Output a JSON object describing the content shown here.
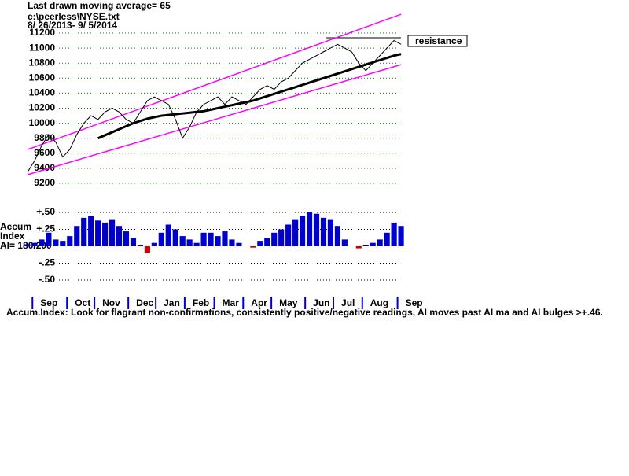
{
  "chart_data": [
    {
      "type": "line",
      "title": "Last drawn moving average= 65",
      "subtitle": "c:\\peerless\\NYSE.txt",
      "date_range": "8/ 26/2013- 9/ 5/2014",
      "annotations": [
        {
          "text": "resistance"
        }
      ],
      "xlim": [
        0,
        55
      ],
      "ylim": [
        9200,
        11200
      ],
      "yticks": [
        9200,
        9400,
        9600,
        9800,
        10000,
        10200,
        10400,
        10600,
        10800,
        11000,
        11200
      ],
      "grid": true,
      "grid_color": "#008000",
      "series": [
        {
          "color": "#000000",
          "width": 1,
          "values": [
            9350,
            9500,
            9700,
            9850,
            9750,
            9550,
            9650,
            9850,
            10000,
            10100,
            10050,
            10150,
            10200,
            10150,
            10050,
            10000,
            10150,
            10300,
            10350,
            10300,
            10250,
            10050,
            9800,
            9950,
            10150,
            10250,
            10300,
            10350,
            10250,
            10350,
            10300,
            10250,
            10350,
            10450,
            10500,
            10450,
            10550,
            10600,
            10700,
            10800,
            10850,
            10900,
            10950,
            11000,
            11050,
            11000,
            10950,
            10800,
            10700,
            10800,
            10900,
            11000,
            11100,
            11050
          ]
        },
        {
          "color": "#000000",
          "width": 3,
          "values": [
            null,
            null,
            null,
            null,
            null,
            null,
            null,
            null,
            null,
            null,
            9800,
            9840,
            9880,
            9920,
            9960,
            10000,
            10030,
            10060,
            10080,
            10100,
            10110,
            10120,
            10130,
            10140,
            10150,
            10160,
            10180,
            10200,
            10220,
            10240,
            10260,
            10280,
            10300,
            10330,
            10360,
            10390,
            10420,
            10450,
            10480,
            10510,
            10540,
            10570,
            10600,
            10630,
            10660,
            10690,
            10720,
            10750,
            10780,
            10810,
            10840,
            10870,
            10900,
            10920
          ]
        }
      ],
      "trend_lines": [
        {
          "color": "#ff00ff",
          "x": [
            0,
            53
          ],
          "values": [
            9650,
            11450
          ]
        },
        {
          "color": "#ff00ff",
          "x": [
            0,
            53
          ],
          "values": [
            9315,
            10780
          ]
        }
      ]
    },
    {
      "type": "bar",
      "ylabel_lines": [
        "Accum",
        "Index",
        "AI= 180/200"
      ],
      "footnote": "Accum.Index: Look for flagrant non-confirmations, consistently positive/negative readings, AI moves past AI ma and AI bulges >+.46.",
      "xlim": [
        0,
        55
      ],
      "xticks": [
        {
          "value": 0.7,
          "label": "Sep"
        },
        {
          "value": 5.6,
          "label": "Oct"
        },
        {
          "value": 9.5,
          "label": "Nov"
        },
        {
          "value": 14.3,
          "label": "Dec"
        },
        {
          "value": 18.2,
          "label": "Jan"
        },
        {
          "value": 22.3,
          "label": "Feb"
        },
        {
          "value": 26.5,
          "label": "Mar"
        },
        {
          "value": 30.6,
          "label": "Apr"
        },
        {
          "value": 34.6,
          "label": "May"
        },
        {
          "value": 39.4,
          "label": "Jun"
        },
        {
          "value": 43.4,
          "label": "Jul"
        },
        {
          "value": 47.5,
          "label": "Aug"
        },
        {
          "value": 52.5,
          "label": "Sep"
        }
      ],
      "ylim": [
        -0.5,
        0.5
      ],
      "yticks": [
        {
          "value": 0.5,
          "label": "+.50"
        },
        {
          "value": 0.25,
          "label": "+.25"
        },
        {
          "value": -0.25,
          "label": "-.25"
        },
        {
          "value": -0.5,
          "label": "-.50"
        }
      ],
      "grid": true,
      "grid_color": "#000000",
      "color": "#0000cc",
      "negative_color": "#cc0000",
      "values": [
        0.03,
        0.05,
        0.1,
        0.2,
        0.1,
        0.08,
        0.15,
        0.3,
        0.42,
        0.45,
        0.38,
        0.35,
        0.4,
        0.3,
        0.22,
        0.12,
        0.02,
        -0.1,
        0.05,
        0.2,
        0.32,
        0.25,
        0.15,
        0.1,
        0.05,
        0.2,
        0.2,
        0.15,
        0.22,
        0.1,
        0.05,
        0.0,
        -0.02,
        0.08,
        0.12,
        0.2,
        0.25,
        0.32,
        0.4,
        0.45,
        0.5,
        0.48,
        0.42,
        0.4,
        0.3,
        0.1,
        0.0,
        -0.03,
        0.02,
        0.05,
        0.1,
        0.2,
        0.35,
        0.3
      ]
    }
  ]
}
